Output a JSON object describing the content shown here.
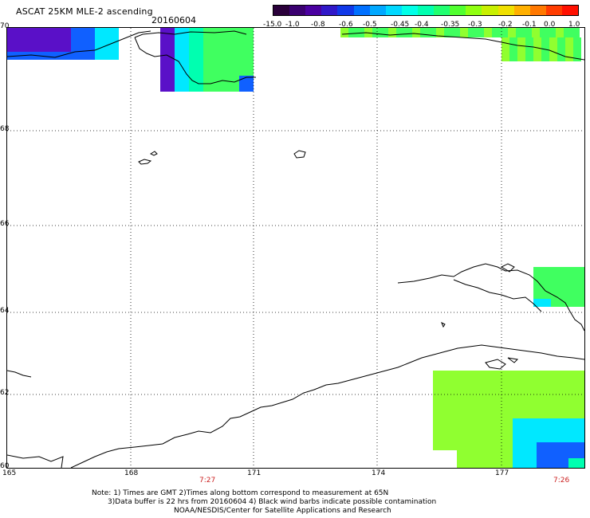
{
  "header": {
    "title": "ASCAT 25KM MLE-2 ascending",
    "date": "20160604"
  },
  "colorbar": {
    "colors": [
      "#2a003a",
      "#3a0070",
      "#4a00a0",
      "#3018c8",
      "#1038e8",
      "#0070ff",
      "#00a8ff",
      "#00d8ff",
      "#00ffe8",
      "#00ffb0",
      "#20ff70",
      "#50ff30",
      "#90ff10",
      "#c8f000",
      "#f0e000",
      "#ffb000",
      "#ff7800",
      "#ff3c00",
      "#ff1000"
    ],
    "labels": [
      "-15.0",
      "-1.0",
      "-0.8",
      "-0.6",
      "-0.5",
      "-0.45",
      "-0.4",
      "-0.35",
      "-0.3",
      "-0.2",
      "-0.1",
      "0.0",
      "1.0"
    ]
  },
  "map": {
    "lat_labels": [
      "70",
      "68",
      "66",
      "64",
      "62",
      "60"
    ],
    "lon_labels": [
      "165",
      "168",
      "171",
      "174",
      "177"
    ],
    "time_labels": [
      "7:27",
      "7:26"
    ],
    "swath_colors": {
      "purple": "#5a10c8",
      "blue": "#1060ff",
      "cyan": "#00e8ff",
      "teal": "#00ffb0",
      "green": "#40ff60",
      "lime": "#90ff30"
    }
  },
  "footer": {
    "note_line1": "Note: 1) Times are GMT 2)Times along bottom correspond to measurement at 65N",
    "note_line2": "3)Data buffer is 22 hrs from 20160604 4) Black wind barbs indicate possible contamination",
    "credit": "NOAA/NESDIS/Center for Satellite Applications and Research"
  }
}
